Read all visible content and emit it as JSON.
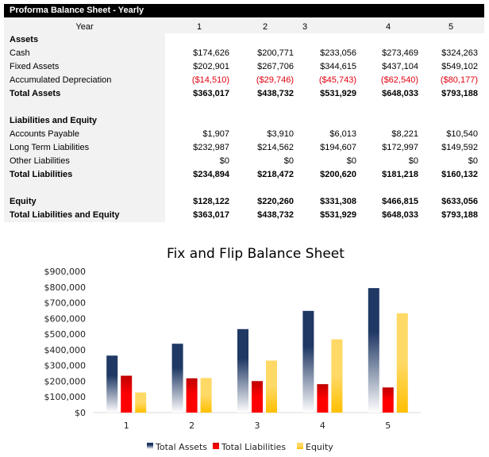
{
  "table": {
    "title": "Proforma Balance Sheet - Yearly",
    "year_label": "Year",
    "years": [
      "1",
      "2",
      "3",
      "4",
      "5"
    ],
    "rows": [
      {
        "label": "Assets",
        "bold": true,
        "values": []
      },
      {
        "label": "Cash",
        "values": [
          "$174,626",
          "$200,771",
          "$233,056",
          "$273,469",
          "$324,263"
        ]
      },
      {
        "label": "Fixed Assets",
        "values": [
          "$202,901",
          "$267,706",
          "$344,615",
          "$437,104",
          "$549,102"
        ]
      },
      {
        "label": "Accumulated Depreciation",
        "negative": true,
        "values": [
          "($14,510)",
          "($29,746)",
          "($45,743)",
          "($62,540)",
          "($80,177)"
        ]
      },
      {
        "label": "Total Assets",
        "bold": true,
        "values": [
          "$363,017",
          "$438,732",
          "$531,929",
          "$648,033",
          "$793,188"
        ]
      },
      {
        "label": "",
        "values": []
      },
      {
        "label": "Liabilities and Equity",
        "bold": true,
        "values": []
      },
      {
        "label": "Accounts Payable",
        "values": [
          "$1,907",
          "$3,910",
          "$6,013",
          "$8,221",
          "$10,540"
        ]
      },
      {
        "label": "Long Term Liabilities",
        "values": [
          "$232,987",
          "$214,562",
          "$194,607",
          "$172,997",
          "$149,592"
        ]
      },
      {
        "label": "Other Liabilities",
        "values": [
          "$0",
          "$0",
          "$0",
          "$0",
          "$0"
        ]
      },
      {
        "label": "Total Liabilities",
        "bold": true,
        "values": [
          "$234,894",
          "$218,472",
          "$200,620",
          "$181,218",
          "$160,132"
        ]
      },
      {
        "label": "",
        "values": []
      },
      {
        "label": "Equity",
        "bold": true,
        "values": [
          "$128,122",
          "$220,260",
          "$331,308",
          "$466,815",
          "$633,056"
        ]
      },
      {
        "label": "Total Liabilities and Equity",
        "bold": true,
        "values": [
          "$363,017",
          "$438,732",
          "$531,929",
          "$648,033",
          "$793,188"
        ]
      }
    ]
  },
  "chart_data": {
    "type": "bar",
    "title": "Fix and Flip Balance Sheet",
    "categories": [
      "1",
      "2",
      "3",
      "4",
      "5"
    ],
    "series": [
      {
        "name": "Total Assets",
        "values": [
          363017,
          438732,
          531929,
          648033,
          793188
        ],
        "color": "#1f3864"
      },
      {
        "name": "Total Liabilities",
        "values": [
          234894,
          218472,
          200620,
          181218,
          160132
        ],
        "color": "#e00000"
      },
      {
        "name": "Equity",
        "values": [
          128122,
          220260,
          331308,
          466815,
          633056
        ],
        "color": "#ffc000"
      }
    ],
    "ylim": [
      0,
      900000
    ],
    "yticks": [
      "$0",
      "$100,000",
      "$200,000",
      "$300,000",
      "$400,000",
      "$500,000",
      "$600,000",
      "$700,000",
      "$800,000",
      "$900,000"
    ],
    "grid": false,
    "legend": "bottom"
  },
  "colors": {
    "negative": "#e0000f",
    "header_bg": "#000000",
    "label_bg": "#f2f2f2"
  }
}
